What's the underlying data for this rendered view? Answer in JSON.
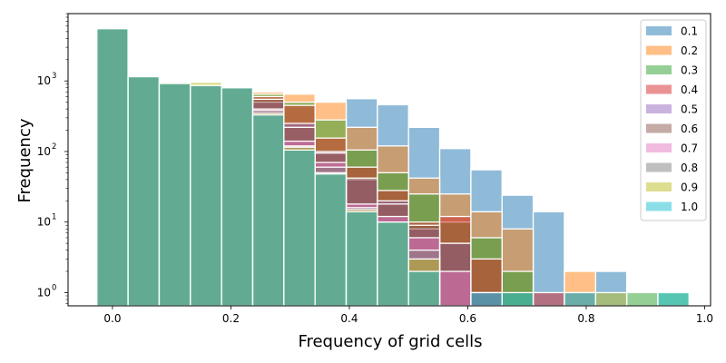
{
  "chart_data": {
    "type": "bar",
    "subtype": "overlaid histogram",
    "title": "",
    "xlabel": "Frequency of grid cells",
    "ylabel": "Frequency",
    "x_scale": "linear",
    "y_scale": "log",
    "xlim": [
      -0.075,
      1.01
    ],
    "ylim": [
      0.65,
      9000
    ],
    "x_ticks": [
      0.0,
      0.2,
      0.4,
      0.6,
      0.8,
      1.0
    ],
    "x_tick_labels": [
      "0.0",
      "0.2",
      "0.4",
      "0.6",
      "0.8",
      "1.0"
    ],
    "y_ticks": [
      1,
      10,
      100,
      1000
    ],
    "y_tick_labels": [
      "10",
      "10",
      "10",
      "10"
    ],
    "y_tick_exponents": [
      "0",
      "1",
      "2",
      "3"
    ],
    "bin_width": 0.0526,
    "bin_starts": [
      -0.0263,
      0.0263,
      0.0789,
      0.1316,
      0.1842,
      0.2368,
      0.2895,
      0.3421,
      0.3947,
      0.4474,
      0.5,
      0.5526,
      0.6053,
      0.6579,
      0.7105,
      0.7632,
      0.8158,
      0.8684,
      0.9211
    ],
    "grid": false,
    "legend_position": "top-right",
    "bar_alpha": 0.5,
    "series": [
      {
        "name": "0.1",
        "color": "#1f77b4",
        "values": [
          5500,
          1150,
          920,
          860,
          800,
          350,
          110,
          48,
          560,
          460,
          220,
          110,
          55,
          24,
          14,
          0,
          2,
          0,
          0
        ]
      },
      {
        "name": "0.2",
        "color": "#ff7f0e",
        "values": [
          5500,
          1200,
          920,
          860,
          800,
          700,
          650,
          500,
          220,
          120,
          42,
          25,
          14,
          8,
          0,
          2,
          0,
          0,
          0
        ]
      },
      {
        "name": "0.3",
        "color": "#2ca02c",
        "values": [
          5500,
          1150,
          920,
          860,
          800,
          650,
          500,
          280,
          105,
          50,
          25,
          10,
          6,
          2,
          0,
          0,
          0,
          1,
          1
        ]
      },
      {
        "name": "0.4",
        "color": "#d62728",
        "values": [
          5500,
          1150,
          920,
          860,
          800,
          600,
          450,
          155,
          60,
          28,
          10,
          12,
          3,
          0,
          1,
          0,
          0,
          0,
          0
        ]
      },
      {
        "name": "0.5",
        "color": "#9467bd",
        "values": [
          5500,
          1150,
          920,
          860,
          800,
          500,
          250,
          100,
          40,
          20,
          8,
          5,
          1,
          0,
          0,
          0,
          0,
          0,
          0
        ]
      },
      {
        "name": "0.6",
        "color": "#8c564b",
        "values": [
          5500,
          1150,
          920,
          860,
          800,
          550,
          220,
          95,
          42,
          18,
          9,
          5,
          0,
          0,
          0,
          0,
          0,
          0,
          0
        ]
      },
      {
        "name": "0.7",
        "color": "#e377c2",
        "values": [
          5500,
          1150,
          920,
          860,
          800,
          400,
          140,
          70,
          18,
          12,
          6,
          2,
          0,
          0,
          0,
          0,
          0,
          0,
          0
        ]
      },
      {
        "name": "0.8",
        "color": "#7f7f7f",
        "values": [
          5500,
          1150,
          920,
          860,
          800,
          380,
          120,
          60,
          16,
          10,
          4,
          0,
          0,
          0,
          0,
          1,
          0,
          0,
          0
        ]
      },
      {
        "name": "0.9",
        "color": "#bcbd22",
        "values": [
          5500,
          1150,
          960,
          960,
          800,
          350,
          115,
          50,
          15,
          10,
          3,
          0,
          0,
          0,
          0,
          0,
          1,
          0,
          0
        ]
      },
      {
        "name": "1.0",
        "color": "#17becf",
        "values": [
          5500,
          1150,
          920,
          860,
          800,
          330,
          105,
          48,
          14,
          10,
          2,
          0,
          1,
          1,
          0,
          1,
          0,
          0,
          1
        ]
      }
    ]
  }
}
